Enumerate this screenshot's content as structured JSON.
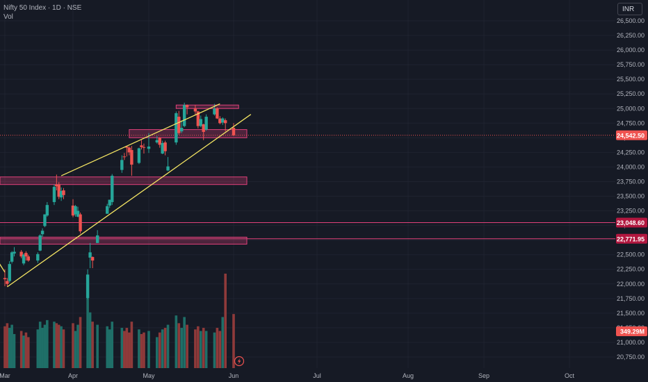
{
  "header": {
    "symbol_line": "Nifty 50 Index · 1D · NSE",
    "volume_label": "Vol"
  },
  "currency_button": "INR",
  "colors": {
    "background": "#161a25",
    "up": "#26a69a",
    "down": "#ef5350",
    "trendline": "#f5e663",
    "zone": "#e0407a",
    "volume_up": "#1f6f68",
    "volume_down": "#8f3a3a"
  },
  "chart_data": {
    "type": "candlestick",
    "title": "",
    "y_ticks": [
      "26,500.00",
      "26,250.00",
      "26,000.00",
      "25,750.00",
      "25,500.00",
      "25,250.00",
      "25,000.00",
      "24,750.00",
      "24,500.00",
      "24,250.00",
      "24,000.00",
      "23,750.00",
      "23,500.00",
      "23,250.00",
      "23,000.00",
      "22,750.00",
      "22,500.00",
      "22,250.00",
      "22,000.00",
      "21,750.00",
      "21,500.00",
      "21,250.00",
      "21,000.00",
      "20,750.00"
    ],
    "y_tick_values": [
      26500,
      26250,
      26000,
      25750,
      25500,
      25250,
      25000,
      24750,
      24500,
      24250,
      24000,
      23750,
      23500,
      23250,
      23000,
      22750,
      22500,
      22250,
      22000,
      21750,
      21500,
      21250,
      21000,
      20750
    ],
    "x_ticks": [
      {
        "label": "Mar",
        "date": "2025-03-03"
      },
      {
        "label": "Apr",
        "date": "2025-04-01"
      },
      {
        "label": "May",
        "date": "2025-05-02"
      },
      {
        "label": "Jun",
        "date": "2025-06-02"
      },
      {
        "label": "Jul",
        "date": "2025-07-01"
      },
      {
        "label": "Aug",
        "date": "2025-08-01"
      },
      {
        "label": "Sep",
        "date": "2025-09-01"
      },
      {
        "label": "Oct",
        "date": "2025-10-01"
      }
    ],
    "price_tags": [
      {
        "label": "24,542.50",
        "value": 24542.5,
        "style": "current"
      },
      {
        "label": "23,048.60",
        "value": 23048.6,
        "style": "level"
      },
      {
        "label": "22,771.95",
        "value": 22771.95,
        "style": "level"
      }
    ],
    "volume_tag": "349.29M",
    "zones": [
      {
        "from_date": "2025-04-24",
        "to_date": "2025-06-02",
        "low": 24500,
        "high": 24640
      },
      {
        "from_date": "2025-05-12",
        "to_date": "2025-05-30",
        "low": 25000,
        "high": 25060
      },
      {
        "from_date": "2025-02-20",
        "to_date": "2025-06-02",
        "low": 23700,
        "high": 23830
      },
      {
        "from_date": "2025-02-20",
        "to_date": "2025-06-02",
        "low": 22680,
        "high": 22800
      }
    ],
    "trendlines": [
      {
        "from": {
          "date": "2025-03-04",
          "price": 21950
        },
        "to": {
          "date": "2025-06-08",
          "price": 24900
        }
      },
      {
        "from": {
          "date": "2025-03-27",
          "price": 23850
        },
        "to": {
          "date": "2025-05-28",
          "price": 25080
        }
      },
      {
        "from": {
          "date": "2025-02-24",
          "price": 22650
        },
        "to": {
          "date": "2025-03-03",
          "price": 22200
        }
      }
    ],
    "candles": [
      {
        "date": "2025-02-24",
        "open": 22620,
        "high": 22680,
        "low": 22500,
        "close": 22550,
        "volume": 260
      },
      {
        "date": "2025-02-25",
        "open": 22550,
        "high": 22600,
        "low": 22440,
        "close": 22500,
        "volume": 230
      },
      {
        "date": "2025-02-27",
        "open": 22540,
        "high": 22580,
        "low": 22400,
        "close": 22450,
        "volume": 240
      },
      {
        "date": "2025-02-28",
        "open": 22400,
        "high": 22420,
        "low": 22050,
        "close": 22120,
        "volume": 330
      },
      {
        "date": "2025-03-03",
        "open": 22100,
        "high": 22250,
        "low": 21960,
        "close": 22080,
        "volume": 270
      },
      {
        "date": "2025-03-04",
        "open": 22050,
        "high": 22100,
        "low": 21960,
        "close": 22000,
        "volume": 290
      },
      {
        "date": "2025-03-05",
        "open": 22050,
        "high": 22390,
        "low": 22020,
        "close": 22340,
        "volume": 260
      },
      {
        "date": "2025-03-06",
        "open": 22380,
        "high": 22560,
        "low": 22350,
        "close": 22540,
        "volume": 280
      },
      {
        "date": "2025-03-07",
        "open": 22520,
        "high": 22630,
        "low": 22470,
        "close": 22550,
        "volume": 220
      },
      {
        "date": "2025-03-10",
        "open": 22550,
        "high": 22580,
        "low": 22440,
        "close": 22470,
        "volume": 240
      },
      {
        "date": "2025-03-11",
        "open": 22350,
        "high": 22520,
        "low": 22320,
        "close": 22500,
        "volume": 210
      },
      {
        "date": "2025-03-12",
        "open": 22530,
        "high": 22560,
        "low": 22400,
        "close": 22470,
        "volume": 230
      },
      {
        "date": "2025-03-13",
        "open": 22470,
        "high": 22500,
        "low": 22380,
        "close": 22400,
        "volume": 200
      },
      {
        "date": "2025-03-17",
        "open": 22400,
        "high": 22540,
        "low": 22360,
        "close": 22510,
        "volume": 250
      },
      {
        "date": "2025-03-18",
        "open": 22570,
        "high": 22850,
        "low": 22560,
        "close": 22830,
        "volume": 300
      },
      {
        "date": "2025-03-19",
        "open": 22850,
        "high": 22950,
        "low": 22800,
        "close": 22910,
        "volume": 260
      },
      {
        "date": "2025-03-20",
        "open": 22990,
        "high": 23190,
        "low": 22970,
        "close": 23190,
        "volume": 280
      },
      {
        "date": "2025-03-21",
        "open": 23170,
        "high": 23400,
        "low": 23150,
        "close": 23350,
        "volume": 310
      },
      {
        "date": "2025-03-24",
        "open": 23400,
        "high": 23700,
        "low": 23350,
        "close": 23660,
        "volume": 300
      },
      {
        "date": "2025-03-25",
        "open": 23700,
        "high": 23870,
        "low": 23600,
        "close": 23670,
        "volume": 290
      },
      {
        "date": "2025-03-26",
        "open": 23700,
        "high": 23740,
        "low": 23450,
        "close": 23490,
        "volume": 280
      },
      {
        "date": "2025-03-27",
        "open": 23480,
        "high": 23650,
        "low": 23420,
        "close": 23590,
        "volume": 270
      },
      {
        "date": "2025-03-28",
        "open": 23600,
        "high": 23640,
        "low": 23450,
        "close": 23520,
        "volume": 250
      },
      {
        "date": "2025-04-01",
        "open": 23340,
        "high": 23450,
        "low": 23140,
        "close": 23170,
        "volume": 290
      },
      {
        "date": "2025-04-02",
        "open": 23190,
        "high": 23350,
        "low": 23150,
        "close": 23330,
        "volume": 240
      },
      {
        "date": "2025-04-03",
        "open": 23150,
        "high": 23320,
        "low": 23140,
        "close": 23250,
        "volume": 280
      },
      {
        "date": "2025-04-04",
        "open": 23190,
        "high": 23220,
        "low": 22860,
        "close": 22900,
        "volume": 330
      },
      {
        "date": "2025-04-07",
        "open": 21760,
        "high": 22250,
        "low": 21740,
        "close": 22160,
        "volume": 520
      },
      {
        "date": "2025-04-08",
        "open": 22450,
        "high": 22700,
        "low": 22270,
        "close": 22540,
        "volume": 360
      },
      {
        "date": "2025-04-09",
        "open": 22460,
        "high": 22470,
        "low": 22270,
        "close": 22400,
        "volume": 300
      },
      {
        "date": "2025-04-11",
        "open": 22700,
        "high": 22920,
        "low": 22700,
        "close": 22830,
        "volume": 280
      },
      {
        "date": "2025-04-15",
        "open": 23200,
        "high": 23370,
        "low": 23200,
        "close": 23330,
        "volume": 270
      },
      {
        "date": "2025-04-16",
        "open": 23340,
        "high": 23440,
        "low": 23300,
        "close": 23440,
        "volume": 250
      },
      {
        "date": "2025-04-17",
        "open": 23400,
        "high": 23880,
        "low": 23350,
        "close": 23850,
        "volume": 300
      },
      {
        "date": "2025-04-21",
        "open": 23950,
        "high": 24200,
        "low": 23900,
        "close": 24120,
        "volume": 260
      },
      {
        "date": "2025-04-22",
        "open": 24180,
        "high": 24240,
        "low": 24120,
        "close": 24170,
        "volume": 240
      },
      {
        "date": "2025-04-23",
        "open": 24350,
        "high": 24360,
        "low": 24180,
        "close": 24330,
        "volume": 260
      },
      {
        "date": "2025-04-24",
        "open": 24330,
        "high": 24350,
        "low": 24200,
        "close": 24250,
        "volume": 230
      },
      {
        "date": "2025-04-25",
        "open": 24290,
        "high": 24360,
        "low": 23850,
        "close": 24040,
        "volume": 300
      },
      {
        "date": "2025-04-28",
        "open": 24070,
        "high": 24330,
        "low": 24050,
        "close": 24320,
        "volume": 250
      },
      {
        "date": "2025-04-29",
        "open": 24370,
        "high": 24460,
        "low": 24300,
        "close": 24340,
        "volume": 220
      },
      {
        "date": "2025-04-30",
        "open": 24340,
        "high": 24400,
        "low": 24230,
        "close": 24330,
        "volume": 230
      },
      {
        "date": "2025-05-02",
        "open": 24310,
        "high": 24580,
        "low": 24240,
        "close": 24350,
        "volume": 240
      },
      {
        "date": "2025-05-05",
        "open": 24420,
        "high": 24530,
        "low": 24400,
        "close": 24460,
        "volume": 200
      },
      {
        "date": "2025-05-06",
        "open": 24500,
        "high": 24510,
        "low": 24330,
        "close": 24380,
        "volume": 230
      },
      {
        "date": "2025-05-07",
        "open": 24230,
        "high": 24450,
        "low": 24220,
        "close": 24410,
        "volume": 250
      },
      {
        "date": "2025-05-08",
        "open": 24420,
        "high": 24450,
        "low": 24200,
        "close": 24270,
        "volume": 260
      },
      {
        "date": "2025-05-09",
        "open": 23940,
        "high": 24170,
        "low": 23930,
        "close": 24010,
        "volume": 280
      },
      {
        "date": "2025-05-12",
        "open": 24420,
        "high": 24950,
        "low": 24380,
        "close": 24920,
        "volume": 340
      },
      {
        "date": "2025-05-13",
        "open": 24860,
        "high": 24960,
        "low": 24550,
        "close": 24580,
        "volume": 290
      },
      {
        "date": "2025-05-14",
        "open": 24610,
        "high": 24800,
        "low": 24580,
        "close": 24670,
        "volume": 260
      },
      {
        "date": "2025-05-15",
        "open": 24700,
        "high": 25100,
        "low": 24680,
        "close": 25060,
        "volume": 330
      },
      {
        "date": "2025-05-16",
        "open": 25060,
        "high": 25070,
        "low": 24900,
        "close": 25020,
        "volume": 280
      },
      {
        "date": "2025-05-19",
        "open": 25000,
        "high": 25060,
        "low": 24880,
        "close": 24950,
        "volume": 250
      },
      {
        "date": "2025-05-20",
        "open": 24950,
        "high": 24960,
        "low": 24660,
        "close": 24700,
        "volume": 270
      },
      {
        "date": "2025-05-21",
        "open": 24700,
        "high": 24880,
        "low": 24680,
        "close": 24820,
        "volume": 240
      },
      {
        "date": "2025-05-22",
        "open": 24730,
        "high": 24740,
        "low": 24460,
        "close": 24600,
        "volume": 260
      },
      {
        "date": "2025-05-23",
        "open": 24640,
        "high": 24900,
        "low": 24620,
        "close": 24860,
        "volume": 240
      },
      {
        "date": "2025-05-26",
        "open": 24900,
        "high": 25080,
        "low": 24880,
        "close": 25000,
        "volume": 230
      },
      {
        "date": "2025-05-27",
        "open": 25000,
        "high": 25020,
        "low": 24820,
        "close": 24830,
        "volume": 260
      },
      {
        "date": "2025-05-28",
        "open": 24830,
        "high": 24870,
        "low": 24730,
        "close": 24750,
        "volume": 240
      },
      {
        "date": "2025-05-29",
        "open": 24760,
        "high": 24850,
        "low": 24720,
        "close": 24830,
        "volume": 330
      },
      {
        "date": "2025-05-30",
        "open": 24800,
        "high": 24830,
        "low": 24610,
        "close": 24750,
        "volume": 610
      },
      {
        "date": "2025-06-02",
        "open": 24670,
        "high": 24750,
        "low": 24530,
        "close": 24542.5,
        "volume": 349.29
      }
    ]
  }
}
